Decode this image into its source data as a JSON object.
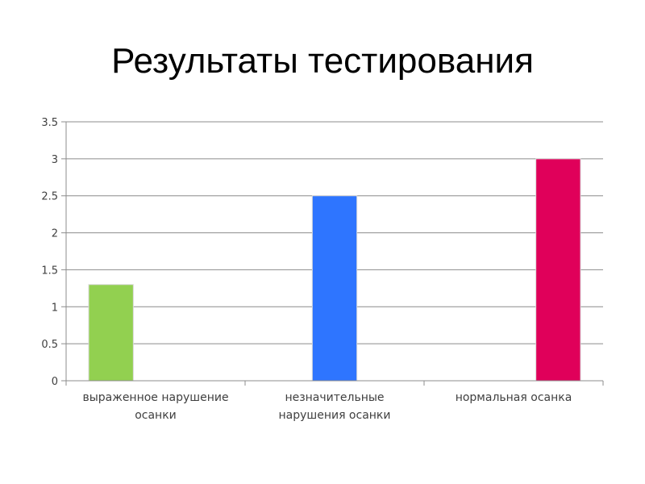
{
  "slide": {
    "title": "Результаты тестирования"
  },
  "chart_data": {
    "type": "bar",
    "title": "",
    "xlabel": "",
    "ylabel": "",
    "ylim": [
      0,
      3.5
    ],
    "yticks": [
      "0",
      "0.5",
      "1",
      "1.5",
      "2",
      "2.5",
      "3",
      "3.5"
    ],
    "grid": true,
    "legend": "none",
    "categories": [
      [
        "выраженное нарушение",
        "осанки"
      ],
      [
        "незначительные",
        "нарушения осанки"
      ],
      [
        "нормальная осанка"
      ]
    ],
    "series": [
      {
        "values": [
          1.3,
          0,
          0
        ],
        "color": "#92d050"
      },
      {
        "values": [
          0,
          2.5,
          0
        ],
        "color": "#2e75ff"
      },
      {
        "values": [
          0,
          0,
          3
        ],
        "color": "#e0005a"
      }
    ],
    "colors": {
      "gridline": "#8c8c8c",
      "axis": "#8c8c8c",
      "bar_outline": "#d9d9d9"
    }
  }
}
